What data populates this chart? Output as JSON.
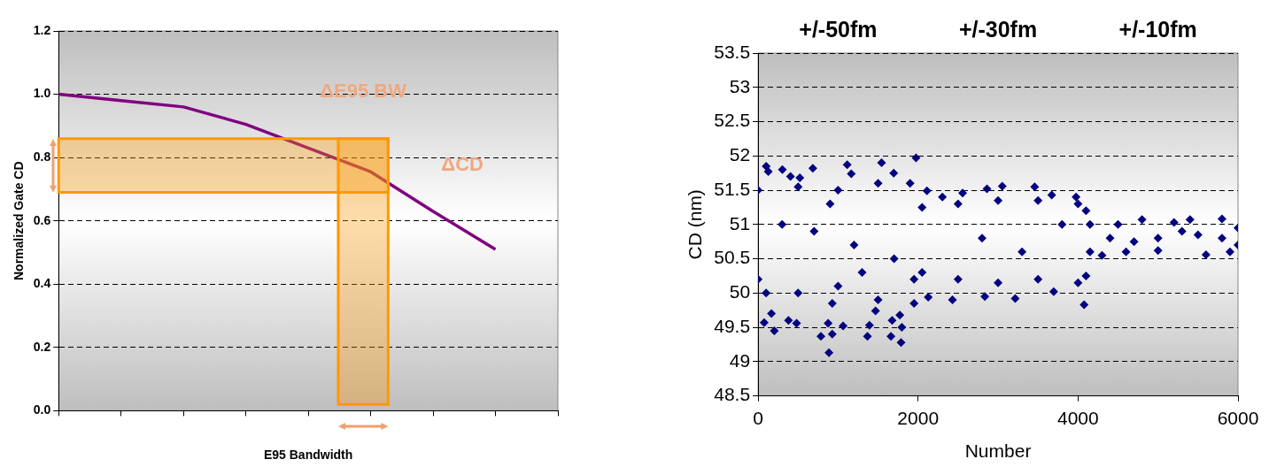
{
  "chart_data": [
    {
      "type": "line",
      "xlabel": "E95 Bandwidth",
      "ylabel": "Normalized Gate CD",
      "annotations": [
        "ΔE95 BW"
      ],
      "categories": [
        null,
        null,
        null,
        null,
        null,
        null,
        null,
        null,
        null
      ],
      "series": [
        {
          "color": "#800080",
          "values": [
            1.0,
            0.98,
            0.96,
            0.905,
            0.83,
            0.755,
            0.63,
            0.51,
            null
          ]
        }
      ],
      "ylim": [
        0,
        1.2
      ],
      "yticks": [
        {
          "value": 0,
          "label": "0.0"
        },
        {
          "value": 0.2,
          "label": "0.2"
        },
        {
          "value": 0.4,
          "label": "0.4"
        },
        {
          "value": 0.6,
          "label": "0.6"
        },
        {
          "value": 0.8,
          "label": "0.8"
        },
        {
          "value": 1.0,
          "label": "1.0"
        },
        {
          "value": 1.2,
          "label": "1.2"
        }
      ],
      "bands": [
        {
          "axis": "y",
          "from": 0.69,
          "to": 0.86,
          "label": "ΔCD",
          "color": "#ff9900"
        },
        {
          "axis": "y",
          "from": 0.02,
          "to": 0.86,
          "color": "#ff9900"
        }
      ],
      "grid": "y",
      "marker": "none",
      "tick_labels": "y"
    },
    {
      "type": "scatter",
      "xlabel": "Number",
      "ylabel": "CD (nm)",
      "annotations": [
        "+/-50fm",
        "+/-30fm",
        "+/-10fm"
      ],
      "series": [
        {
          "color": "#000080",
          "x": [
            76,
            203,
            167,
            380,
            481,
            785,
            886,
            927,
            876,
            927,
            1063,
            1367,
            1392,
            1468,
            1661,
            1676,
            1772,
            1787,
            1797,
            101,
            127,
            304,
            684,
            1114,
            1544,
            1696,
            1975,
            405,
            522,
            1165,
            0,
            0,
            100,
            500,
            500,
            1000,
            1000,
            1500,
            1500,
            1900,
            1950,
            1950,
            700,
            1200,
            300,
            1700,
            900,
            1300,
            2127,
            2430,
            2835,
            3215,
            4076,
            3696,
            2111,
            2861,
            3053,
            3458,
            3671,
            3975,
            2304,
            2557,
            2050,
            2050,
            2500,
            2500,
            3000,
            3000,
            3500,
            3500,
            4000,
            4000,
            4100,
            4100,
            2800,
            3300,
            3800,
            4150,
            4150,
            4300,
            4500,
            4600,
            4800,
            5000,
            5200,
            5400,
            5600,
            5800,
            5900,
            6000,
            6000,
            4400,
            5000,
            5500,
            5800,
            4700,
            5300
          ],
          "values": [
            49.57,
            49.45,
            49.7,
            49.6,
            49.56,
            49.37,
            49.13,
            49.4,
            49.56,
            49.85,
            49.52,
            49.37,
            49.53,
            49.74,
            49.37,
            49.6,
            49.68,
            49.28,
            49.5,
            51.85,
            51.77,
            51.8,
            51.82,
            51.87,
            51.9,
            51.75,
            51.97,
            51.7,
            51.68,
            51.74,
            51.5,
            50.2,
            50.0,
            51.55,
            50.0,
            51.5,
            50.1,
            51.6,
            49.9,
            51.6,
            49.85,
            50.2,
            50.9,
            50.7,
            51.0,
            50.5,
            51.3,
            50.3,
            49.94,
            49.9,
            49.95,
            49.92,
            49.83,
            50.02,
            51.49,
            51.52,
            51.56,
            51.55,
            51.43,
            51.4,
            51.4,
            51.46,
            51.25,
            50.3,
            51.3,
            50.2,
            51.35,
            50.15,
            51.35,
            50.2,
            51.3,
            50.15,
            51.2,
            50.25,
            50.8,
            50.6,
            51.0,
            51.0,
            50.6,
            50.55,
            51.0,
            50.6,
            51.07,
            50.62,
            51.03,
            51.07,
            50.56,
            51.08,
            50.6,
            50.95,
            50.7,
            50.8,
            50.8,
            50.85,
            50.8,
            50.75,
            50.9
          ]
        }
      ],
      "xlim": [
        0,
        6000
      ],
      "xticks": [
        0,
        2000,
        4000,
        6000
      ],
      "ylim": [
        48.5,
        53.5
      ],
      "yticks": [
        48.5,
        49,
        49.5,
        50,
        50.5,
        51,
        51.5,
        52,
        52.5,
        53,
        53.5
      ],
      "grid": "y",
      "marker": "diamond"
    }
  ]
}
